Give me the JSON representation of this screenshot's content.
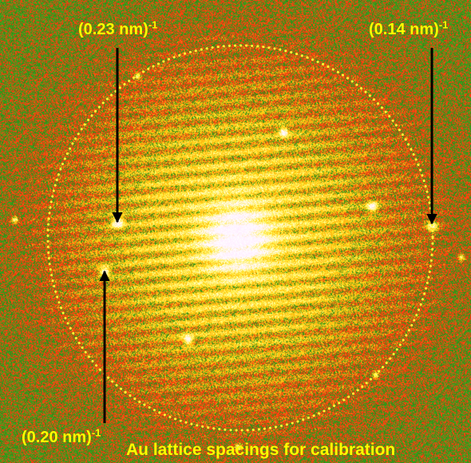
{
  "labels": {
    "spacing_023": {
      "text": "(0.23 nm)",
      "exp": "-1"
    },
    "spacing_014": {
      "text": "(0.14 nm)",
      "exp": "-1"
    },
    "spacing_020": {
      "text": "(0.20 nm)",
      "exp": "-1"
    },
    "caption": "Au lattice spacings for calibration"
  },
  "colors": {
    "background_green": "#2e9a22",
    "noise_red": "#e0201a",
    "core_yellow": "#ffff60",
    "label_yellow": "#ffff00",
    "circle_dotted": "#ffff33",
    "arrow_black": "#000000"
  }
}
